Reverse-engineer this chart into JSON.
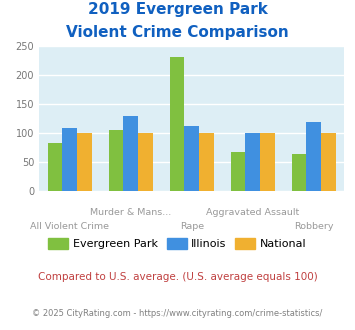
{
  "title_line1": "2019 Evergreen Park",
  "title_line2": "Violent Crime Comparison",
  "categories": [
    "All Violent Crime",
    "Murder & Mans...",
    "Rape",
    "Aggravated Assault",
    "Robbery"
  ],
  "series": {
    "Evergreen Park": [
      84,
      105,
      232,
      67,
      65
    ],
    "Illinois": [
      109,
      130,
      113,
      101,
      120
    ],
    "National": [
      100,
      100,
      100,
      100,
      100
    ]
  },
  "colors": {
    "Evergreen Park": "#80c040",
    "Illinois": "#4090e0",
    "National": "#f0b030"
  },
  "ylim": [
    0,
    250
  ],
  "yticks": [
    0,
    50,
    100,
    150,
    200,
    250
  ],
  "title_color": "#1060c0",
  "bg_color": "#ddeef5",
  "footnote1": "Compared to U.S. average. (U.S. average equals 100)",
  "footnote2": "© 2025 CityRating.com - https://www.cityrating.com/crime-statistics/",
  "footnote1_color": "#c04040",
  "footnote2_color": "#808080",
  "xlabel_top": [
    "",
    "Murder & Mans...",
    "",
    "Aggravated Assault",
    ""
  ],
  "xlabel_bottom": [
    "All Violent Crime",
    "",
    "Rape",
    "",
    "Robbery"
  ],
  "series_names": [
    "Evergreen Park",
    "Illinois",
    "National"
  ]
}
